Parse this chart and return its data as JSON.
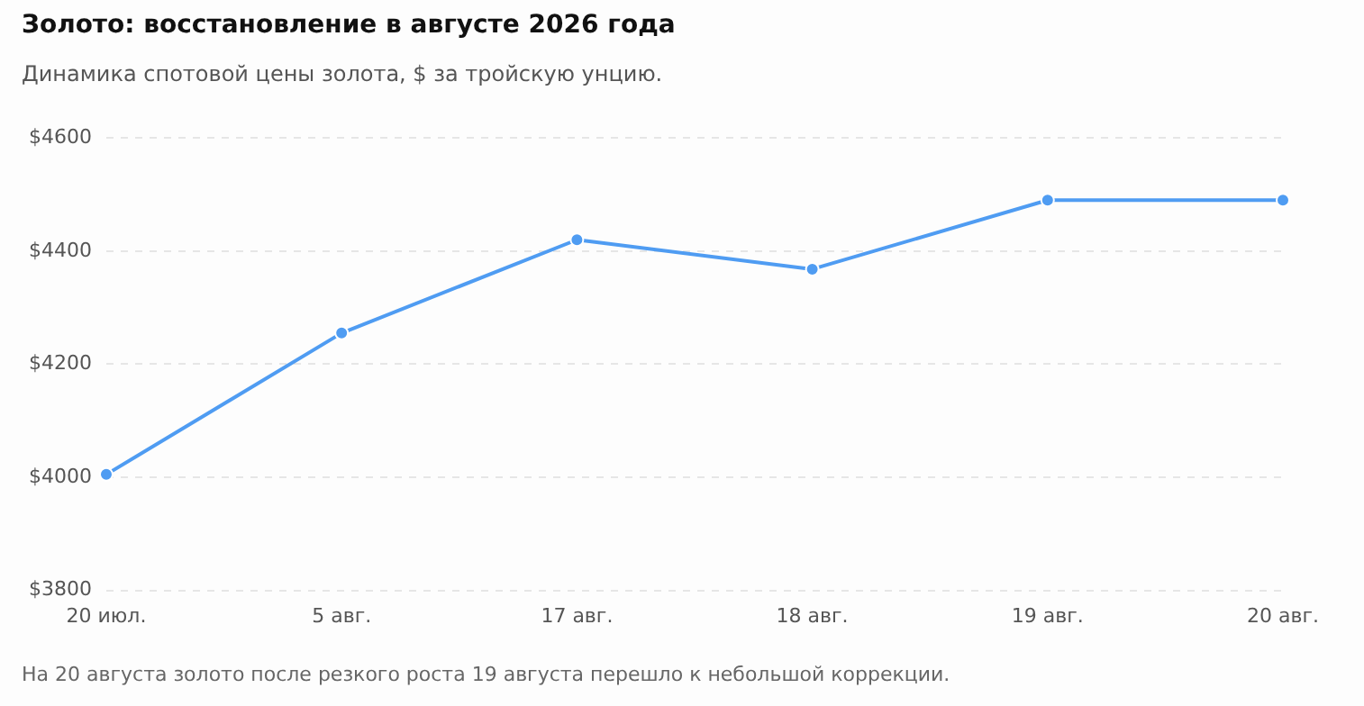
{
  "chart_data": {
    "type": "line",
    "title": "Золото: восстановление в августе 2026 года",
    "subtitle": "Динамика спотовой цены золота, $ за тройскую унцию.",
    "categories": [
      "20 июл.",
      "5 авг.",
      "17 авг.",
      "18 авг.",
      "19 авг.",
      "20 авг."
    ],
    "series": [
      {
        "color": "#4f9cf2",
        "values": [
          4005,
          4255,
          4420,
          4368,
          4490,
          4490
        ]
      }
    ],
    "ylim": [
      3800,
      4600
    ],
    "yticks": [
      {
        "value": 3800,
        "label": "$3800"
      },
      {
        "value": 4000,
        "label": "$4000"
      },
      {
        "value": 4200,
        "label": "$4200"
      },
      {
        "value": 4400,
        "label": "$4400"
      },
      {
        "value": 4600,
        "label": "$4600"
      }
    ],
    "grid": "y",
    "legend": false,
    "marker": "circle",
    "line_style": "solid",
    "annotations": [
      "На 20 августа золото после резкого роста 19 августа перешло к небольшой коррекции."
    ]
  }
}
